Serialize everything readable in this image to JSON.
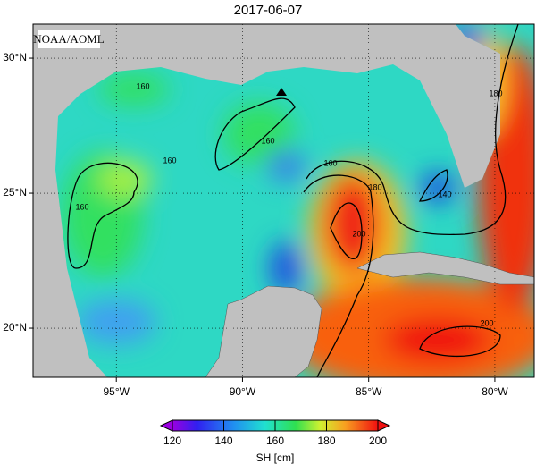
{
  "title": "2017-06-07",
  "credit": "NOAA/AOML",
  "map": {
    "xlim": [
      -98.3,
      -78.44
    ],
    "ylim": [
      18.18,
      31.26
    ],
    "xticks": [
      {
        "value": -95,
        "label": "95°W"
      },
      {
        "value": -90,
        "label": "90°W"
      },
      {
        "value": -85,
        "label": "85°W"
      },
      {
        "value": -80,
        "label": "80°W"
      }
    ],
    "yticks": [
      {
        "value": 20,
        "label": "20°N"
      },
      {
        "value": 25,
        "label": "25°N"
      },
      {
        "value": 30,
        "label": "30°N"
      }
    ],
    "grid": true
  },
  "contour_labels": [
    160,
    160,
    160,
    160,
    160,
    180,
    180,
    200,
    200,
    140
  ],
  "colorbar": {
    "label": "SH [cm]",
    "clim": [
      120,
      200
    ],
    "ticks": [
      120,
      140,
      160,
      180,
      200
    ]
  }
}
